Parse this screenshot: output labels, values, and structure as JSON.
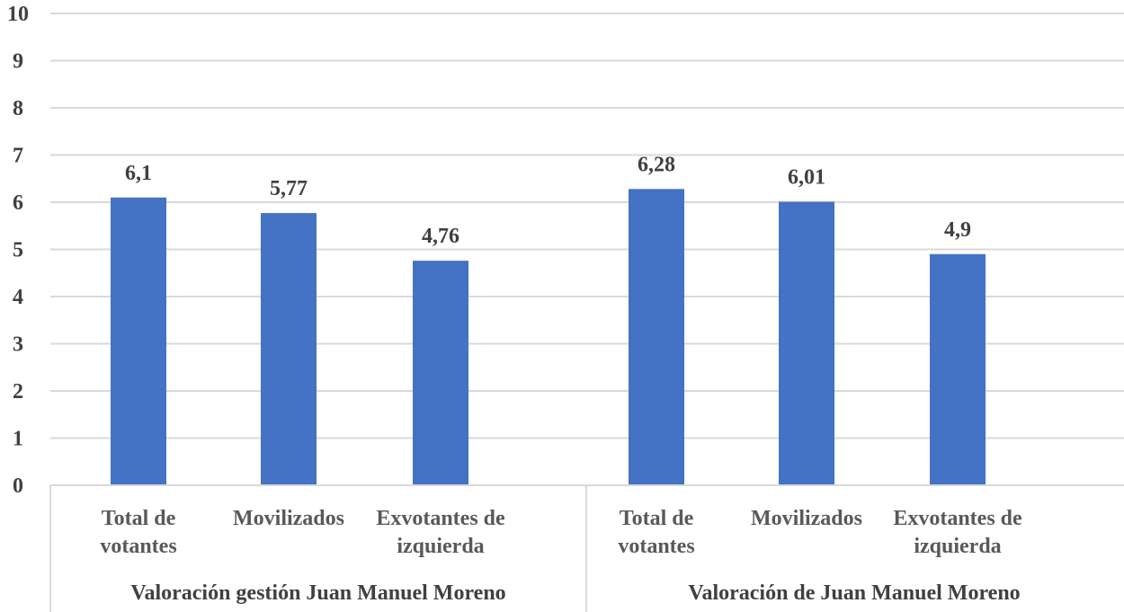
{
  "chart_data": {
    "type": "bar",
    "title": "",
    "xlabel": "",
    "ylabel": "",
    "ylim": [
      0,
      10
    ],
    "yticks": [
      "0",
      "1",
      "2",
      "3",
      "4",
      "5",
      "6",
      "7",
      "8",
      "9",
      "10"
    ],
    "grid": true,
    "legend": "none",
    "bar_color": "#4472C4",
    "groups": [
      {
        "label": "Valoración gestión Juan Manuel Moreno",
        "categories": [
          [
            "Total de",
            "votantes"
          ],
          [
            "Movilizados"
          ],
          [
            "Exvotantes de",
            "izquierda"
          ]
        ],
        "values": [
          6.1,
          5.77,
          4.76
        ],
        "value_labels": [
          "6,1",
          "5,77",
          "4,76"
        ]
      },
      {
        "label": "Valoración de Juan Manuel Moreno",
        "categories": [
          [
            "Total de",
            "votantes"
          ],
          [
            "Movilizados"
          ],
          [
            "Exvotantes de",
            "izquierda"
          ]
        ],
        "values": [
          6.28,
          6.01,
          4.9
        ],
        "value_labels": [
          "6,28",
          "6,01",
          "4,9"
        ]
      }
    ]
  }
}
